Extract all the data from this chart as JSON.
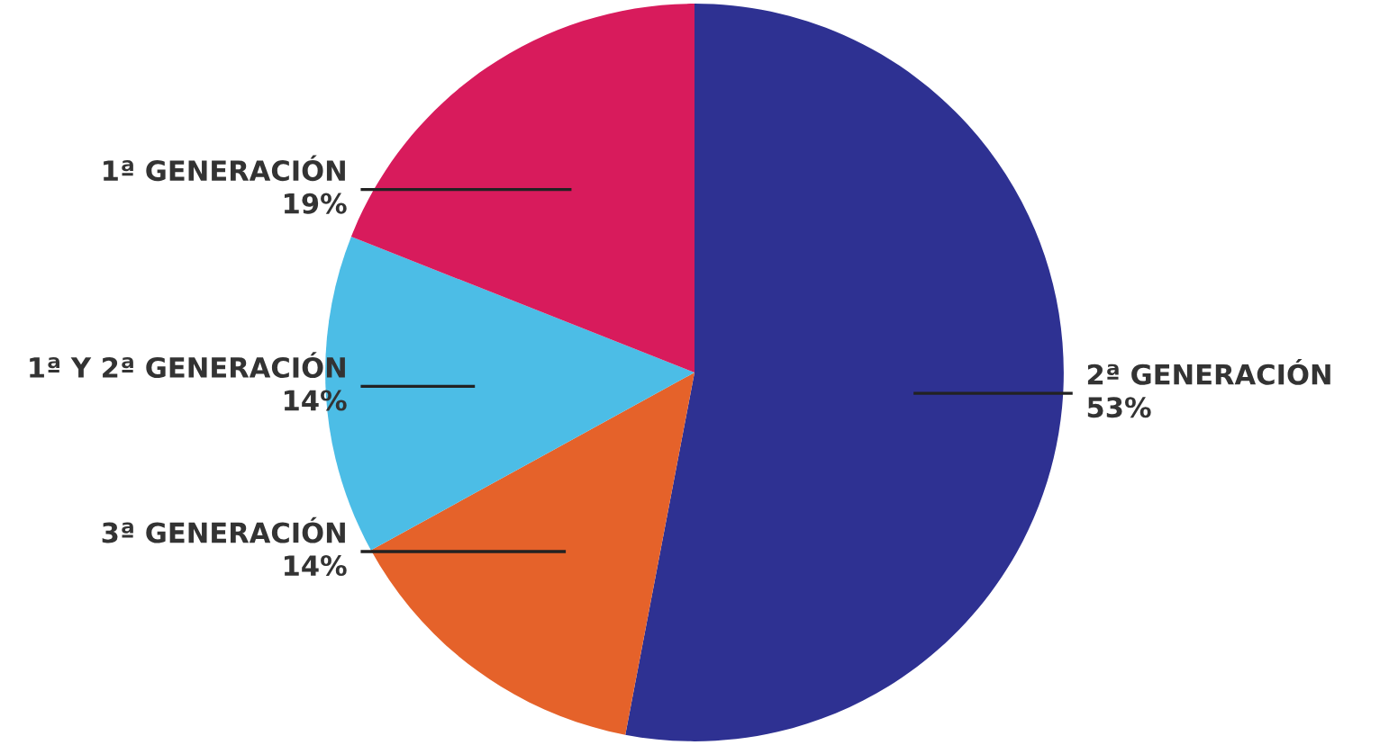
{
  "chart_data": {
    "type": "pie",
    "categories": [
      "2ª GENERACIÓN",
      "3ª GENERACIÓN",
      "1ª Y 2ª GENERACIÓN",
      "1ª GENERACIÓN"
    ],
    "values": [
      53,
      14,
      14,
      19
    ],
    "colors": [
      "#2e3192",
      "#e5622a",
      "#4cbde6",
      "#d81b5c"
    ],
    "value_labels": [
      "53%",
      "14%",
      "14%",
      "19%"
    ]
  }
}
